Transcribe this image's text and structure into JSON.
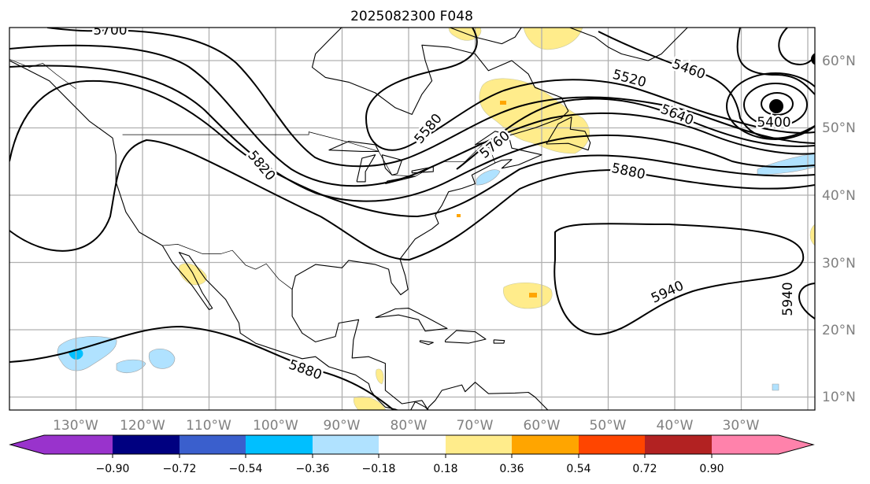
{
  "title": "2025082300 F048",
  "lon_labels": [
    "130°W",
    "120°W",
    "110°W",
    "100°W",
    "90°W",
    "80°W",
    "70°W",
    "60°W",
    "50°W",
    "40°W",
    "30°W"
  ],
  "lat_labels": [
    "60°N",
    "50°N",
    "40°N",
    "30°N",
    "20°N",
    "10°N"
  ],
  "contour_labels": {
    "c5700": "5700",
    "c5580": "5580",
    "c5760": "5760",
    "c5820": "5820",
    "c5520": "5520",
    "c5460": "5460",
    "c5640": "5640",
    "c5880_north": "5880",
    "c5400": "5400",
    "c5940_center": "5940",
    "c5940_east": "5940",
    "c5880_south": "5880"
  },
  "colorbar": {
    "ticks": [
      "−0.90",
      "−0.72",
      "−0.54",
      "−0.36",
      "−0.18",
      "0.18",
      "0.36",
      "0.54",
      "0.72",
      "0.90"
    ],
    "colors": [
      "#9933cc",
      "#000080",
      "#3a5fcd",
      "#00bfff",
      "#b0e2ff",
      "#ffffff",
      "#ffec8b",
      "#ffa500",
      "#ff4500",
      "#b22222",
      "#ff82ab"
    ]
  }
}
